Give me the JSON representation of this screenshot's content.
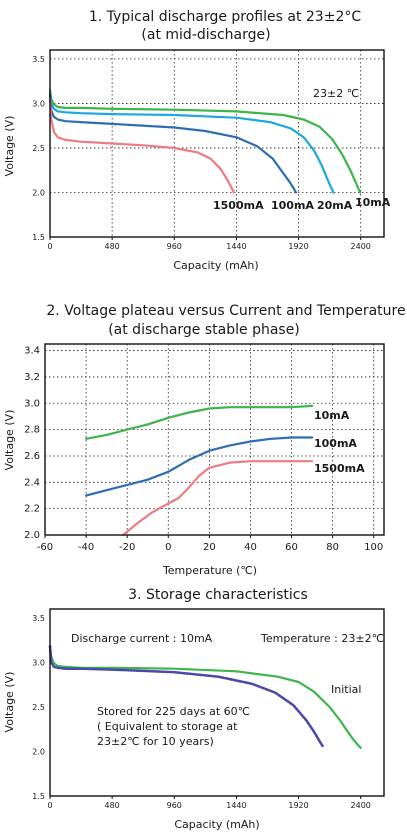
{
  "colors": {
    "green": "#3db54a",
    "lightblue": "#1ba8e0",
    "blue": "#2f6db3",
    "pink": "#ee7a84",
    "purple": "#4a48a8"
  },
  "chart_data": [
    {
      "type": "line",
      "title": "1. Typical discharge profiles at 23±2°C",
      "subtitle": "(at mid-discharge)",
      "xlabel": "Capacity (mAh)",
      "ylabel": "Voltage (V)",
      "xlim": [
        0,
        2580
      ],
      "ylim": [
        1.5,
        3.6
      ],
      "xticks": [
        0,
        480,
        960,
        1440,
        1920,
        2400
      ],
      "yticks": [
        1.5,
        2.0,
        2.5,
        3.0,
        3.5
      ],
      "grid": true,
      "annotation": "23±2  ℃",
      "series": [
        {
          "name": "10mA",
          "color": "#3db54a",
          "x": [
            0,
            10,
            30,
            60,
            120,
            240,
            480,
            960,
            1440,
            1800,
            1960,
            2080,
            2180,
            2260,
            2320,
            2360,
            2380,
            2395
          ],
          "y": [
            3.15,
            3.05,
            2.99,
            2.96,
            2.95,
            2.95,
            2.94,
            2.93,
            2.91,
            2.87,
            2.82,
            2.74,
            2.6,
            2.42,
            2.25,
            2.12,
            2.05,
            2.0
          ]
        },
        {
          "name": "20mA",
          "color": "#1ba8e0",
          "x": [
            0,
            10,
            30,
            60,
            120,
            240,
            480,
            960,
            1440,
            1700,
            1860,
            1960,
            2040,
            2100,
            2140,
            2170,
            2190
          ],
          "y": [
            3.12,
            3.0,
            2.94,
            2.91,
            2.9,
            2.89,
            2.88,
            2.87,
            2.84,
            2.79,
            2.72,
            2.62,
            2.47,
            2.3,
            2.16,
            2.06,
            2.0
          ]
        },
        {
          "name": "100mA",
          "color": "#2f6db3",
          "x": [
            0,
            10,
            30,
            60,
            120,
            240,
            480,
            960,
            1200,
            1440,
            1600,
            1720,
            1800,
            1850,
            1880,
            1900
          ],
          "y": [
            3.1,
            2.92,
            2.85,
            2.82,
            2.8,
            2.79,
            2.77,
            2.73,
            2.69,
            2.62,
            2.52,
            2.38,
            2.22,
            2.12,
            2.05,
            2.0
          ]
        },
        {
          "name": "1500mA",
          "color": "#ee7a84",
          "x": [
            0,
            10,
            30,
            60,
            120,
            240,
            480,
            720,
            960,
            1140,
            1240,
            1320,
            1370,
            1400,
            1420
          ],
          "y": [
            3.05,
            2.82,
            2.68,
            2.62,
            2.59,
            2.57,
            2.55,
            2.53,
            2.5,
            2.45,
            2.38,
            2.26,
            2.14,
            2.06,
            2.0
          ]
        }
      ],
      "labels": [
        "1500mA",
        "100mA",
        "20mA",
        "10mA"
      ]
    },
    {
      "type": "line",
      "title": "2. Voltage plateau versus Current and Temperature",
      "subtitle": "(at discharge stable phase)",
      "xlabel": "Temperature (℃)",
      "ylabel": "Voltage (V)",
      "xlim": [
        -60,
        105
      ],
      "ylim": [
        2.0,
        3.45
      ],
      "xticks": [
        -60,
        -40,
        -20,
        0,
        20,
        40,
        60,
        80,
        100
      ],
      "yticks": [
        2.0,
        2.2,
        2.4,
        2.6,
        2.8,
        3.0,
        3.2,
        3.4
      ],
      "grid": true,
      "series": [
        {
          "name": "10mA",
          "color": "#3db54a",
          "x": [
            -40,
            -30,
            -20,
            -10,
            0,
            10,
            20,
            30,
            40,
            50,
            60,
            70
          ],
          "y": [
            2.73,
            2.76,
            2.8,
            2.84,
            2.89,
            2.93,
            2.96,
            2.97,
            2.97,
            2.97,
            2.97,
            2.98
          ]
        },
        {
          "name": "100mA",
          "color": "#2f6db3",
          "x": [
            -40,
            -30,
            -20,
            -10,
            0,
            10,
            20,
            30,
            40,
            50,
            60,
            70
          ],
          "y": [
            2.3,
            2.34,
            2.38,
            2.42,
            2.48,
            2.57,
            2.64,
            2.68,
            2.71,
            2.73,
            2.74,
            2.74
          ]
        },
        {
          "name": "1500mA",
          "color": "#ee7a84",
          "x": [
            -22,
            -15,
            -8,
            0,
            5,
            10,
            15,
            20,
            30,
            40,
            50,
            60,
            70
          ],
          "y": [
            2.0,
            2.09,
            2.17,
            2.24,
            2.28,
            2.36,
            2.45,
            2.51,
            2.55,
            2.56,
            2.56,
            2.56,
            2.56
          ]
        }
      ],
      "labels": [
        "10mA",
        "100mA",
        "1500mA"
      ]
    },
    {
      "type": "line",
      "title": "3. Storage characteristics",
      "xlabel": "Capacity (mAh)",
      "ylabel": "Voltage (V)",
      "xlim": [
        0,
        2580
      ],
      "ylim": [
        1.5,
        3.6
      ],
      "xticks": [
        0,
        480,
        960,
        1440,
        1920,
        2400
      ],
      "yticks": [
        1.5,
        2.0,
        2.5,
        3.0,
        3.5
      ],
      "grid": false,
      "annotations": {
        "discharge": "Discharge current : 10mA",
        "temperature": "Temperature : 23±2℃",
        "initial": "Initial",
        "stored1": "Stored for 225 days at 60℃",
        "stored2": "( Equivalent to storage at",
        "stored3": "23±2℃ for 10 years)"
      },
      "series": [
        {
          "name": "Initial",
          "color": "#3db54a",
          "x": [
            0,
            10,
            30,
            60,
            120,
            240,
            480,
            960,
            1440,
            1760,
            1920,
            2040,
            2160,
            2240,
            2300,
            2340,
            2380,
            2400
          ],
          "y": [
            3.18,
            3.06,
            2.99,
            2.96,
            2.95,
            2.94,
            2.94,
            2.93,
            2.9,
            2.84,
            2.78,
            2.67,
            2.5,
            2.35,
            2.22,
            2.14,
            2.07,
            2.04
          ]
        },
        {
          "name": "Stored for 225 days at 60℃",
          "color": "#4a48a8",
          "x": [
            0,
            10,
            30,
            60,
            120,
            240,
            480,
            960,
            1300,
            1560,
            1740,
            1880,
            1980,
            2040,
            2080,
            2110
          ],
          "y": [
            3.18,
            3.0,
            2.95,
            2.94,
            2.93,
            2.93,
            2.92,
            2.89,
            2.84,
            2.76,
            2.66,
            2.52,
            2.35,
            2.22,
            2.12,
            2.05
          ]
        }
      ]
    }
  ]
}
